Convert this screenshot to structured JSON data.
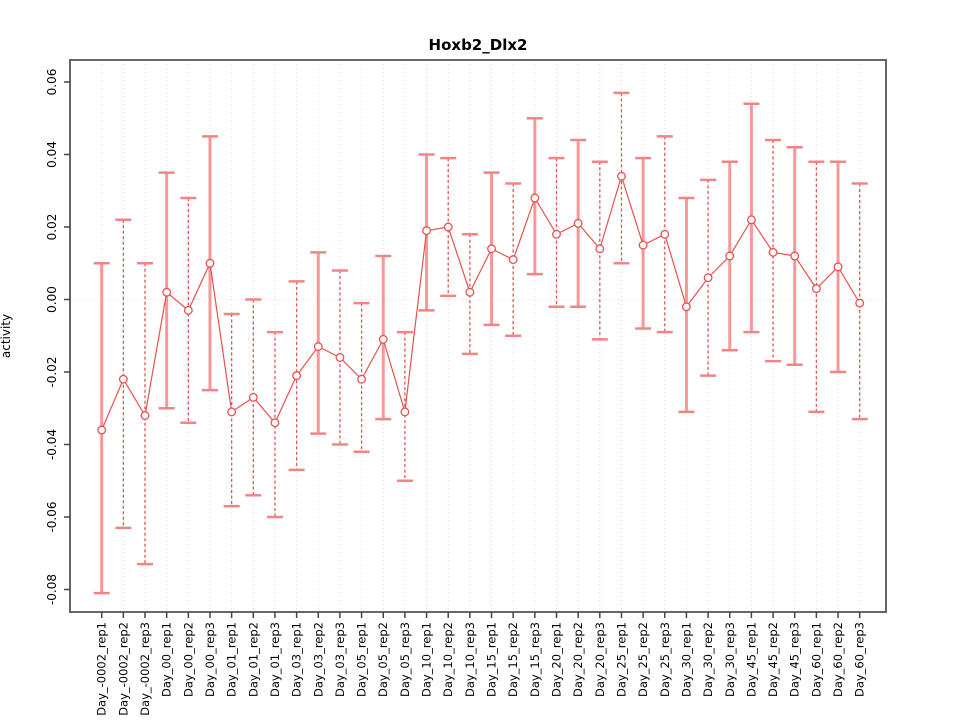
{
  "chart_data": {
    "type": "line",
    "subtype": "points-with-error-bars",
    "title": "Hoxb2_Dlx2",
    "xlabel": "",
    "ylabel": "activity",
    "ylim": [
      -0.085,
      0.065
    ],
    "yticks": [
      0.06,
      0.04,
      0.02,
      0.0,
      -0.02,
      -0.04,
      -0.06,
      -0.08
    ],
    "grid": {
      "vertical": "dotted line at every category",
      "horizontal": "dotted line at y=0 only"
    },
    "legend": "none",
    "categories": [
      "Day_-0002_rep1",
      "Day_-0002_rep2",
      "Day_-0002_rep3",
      "Day_00_rep1",
      "Day_00_rep2",
      "Day_00_rep3",
      "Day_01_rep1",
      "Day_01_rep2",
      "Day_01_rep3",
      "Day_03_rep1",
      "Day_03_rep2",
      "Day_03_rep3",
      "Day_05_rep1",
      "Day_05_rep2",
      "Day_05_rep3",
      "Day_10_rep1",
      "Day_10_rep2",
      "Day_10_rep3",
      "Day_15_rep1",
      "Day_15_rep2",
      "Day_15_rep3",
      "Day_20_rep1",
      "Day_20_rep2",
      "Day_20_rep3",
      "Day_25_rep1",
      "Day_25_rep2",
      "Day_25_rep3",
      "Day_30_rep1",
      "Day_30_rep2",
      "Day_30_rep3",
      "Day_45_rep1",
      "Day_45_rep2",
      "Day_45_rep3",
      "Day_60_rep1",
      "Day_60_rep2",
      "Day_60_rep3"
    ],
    "series": [
      {
        "name": "mean",
        "values": [
          -0.036,
          -0.022,
          -0.032,
          0.002,
          -0.003,
          0.01,
          -0.031,
          -0.027,
          -0.034,
          -0.021,
          -0.013,
          -0.016,
          -0.022,
          -0.011,
          -0.031,
          0.019,
          0.02,
          0.002,
          0.014,
          0.011,
          0.028,
          0.018,
          0.021,
          0.014,
          0.034,
          0.015,
          0.018,
          -0.002,
          0.006,
          0.012,
          0.022,
          0.013,
          0.012,
          0.003,
          0.009,
          -0.001
        ]
      },
      {
        "name": "upper",
        "values": [
          0.01,
          0.022,
          0.01,
          0.035,
          0.028,
          0.045,
          -0.004,
          0.0,
          -0.009,
          0.005,
          0.013,
          0.008,
          -0.001,
          0.012,
          -0.009,
          0.04,
          0.039,
          0.018,
          0.035,
          0.032,
          0.05,
          0.039,
          0.044,
          0.038,
          0.057,
          0.039,
          0.045,
          0.028,
          0.033,
          0.038,
          0.054,
          0.044,
          0.042,
          0.038,
          0.038,
          0.032
        ]
      },
      {
        "name": "lower",
        "values": [
          -0.081,
          -0.063,
          -0.073,
          -0.03,
          -0.034,
          -0.025,
          -0.057,
          -0.054,
          -0.06,
          -0.047,
          -0.037,
          -0.04,
          -0.042,
          -0.033,
          -0.05,
          -0.003,
          0.001,
          -0.015,
          -0.007,
          -0.01,
          0.007,
          -0.002,
          -0.002,
          -0.011,
          0.01,
          -0.008,
          -0.009,
          -0.031,
          -0.021,
          -0.014,
          -0.009,
          -0.017,
          -0.018,
          -0.031,
          -0.02,
          -0.033
        ]
      }
    ],
    "bar_styles": [
      "solid",
      "dashed",
      "dashed",
      "solid",
      "dashed",
      "solid",
      "dashed",
      "dashed",
      "dashed",
      "dashed",
      "solid",
      "dashed",
      "dashed",
      "solid",
      "dashed",
      "solid",
      "dashed",
      "dashed",
      "solid",
      "dashed",
      "solid",
      "dashed",
      "solid",
      "dashed",
      "dashed",
      "solid",
      "dashed",
      "solid",
      "dashed",
      "solid",
      "solid",
      "dashed",
      "solid",
      "dashed",
      "solid",
      "dashed"
    ],
    "colors": {
      "point": "#e85050",
      "line": "#e85050",
      "error_bar_solid": "#f59898",
      "error_bar_dashed": "#e05555",
      "error_bar_cap": "#f08585",
      "grid": "#d9d9d9",
      "box": "#666666",
      "tick": "#444444",
      "text": "#000000"
    }
  }
}
